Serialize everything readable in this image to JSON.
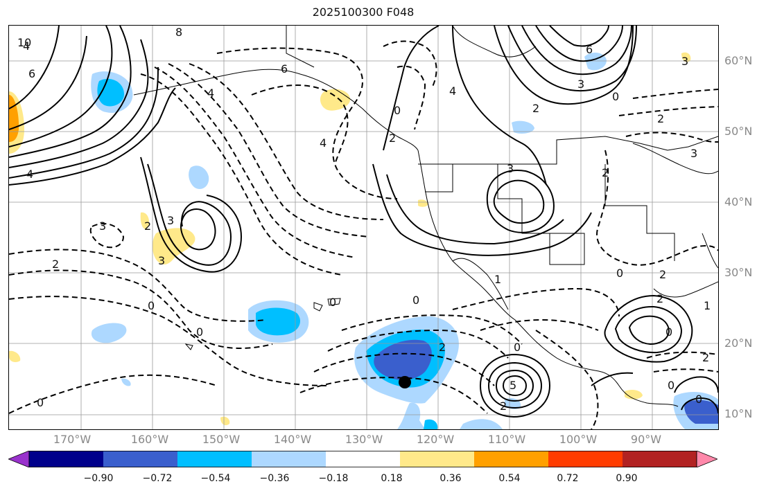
{
  "title": "2025100300 F048",
  "lon_labels": [
    "170°W",
    "160°W",
    "150°W",
    "140°W",
    "130°W",
    "120°W",
    "110°W",
    "100°W",
    "90°W"
  ],
  "lat_labels": [
    "60°N",
    "50°N",
    "40°N",
    "30°N",
    "20°N",
    "10°N"
  ],
  "colorbar": {
    "colors": [
      "#9932cc",
      "#00008b",
      "#3a5fcd",
      "#00bfff",
      "#add8ff",
      "#ffffff",
      "#ffe98a",
      "#ffa000",
      "#ff3c00",
      "#b22222",
      "#ff88aa"
    ],
    "tick_labels": [
      "−0.90",
      "−0.72",
      "−0.54",
      "−0.36",
      "−0.18",
      "0.18",
      "0.36",
      "0.54",
      "0.72",
      "0.90"
    ],
    "extend": "both"
  },
  "contour_labels": [
    "4",
    "8",
    "10",
    "6",
    "6",
    "2",
    "4",
    "4",
    "3",
    "2",
    "3",
    "0",
    "0",
    "2",
    "0",
    "0",
    "2",
    "3",
    "4",
    "2",
    "1",
    "3",
    "6",
    "4",
    "3",
    "2",
    "0",
    "2",
    "3",
    "2",
    "1",
    "0",
    "2",
    "0",
    "0",
    "0",
    "5",
    "2",
    "0",
    "2",
    "0",
    "0",
    "3"
  ],
  "marker": {
    "type": "filled-circle",
    "lon": -124.5,
    "lat": 14.5
  }
}
